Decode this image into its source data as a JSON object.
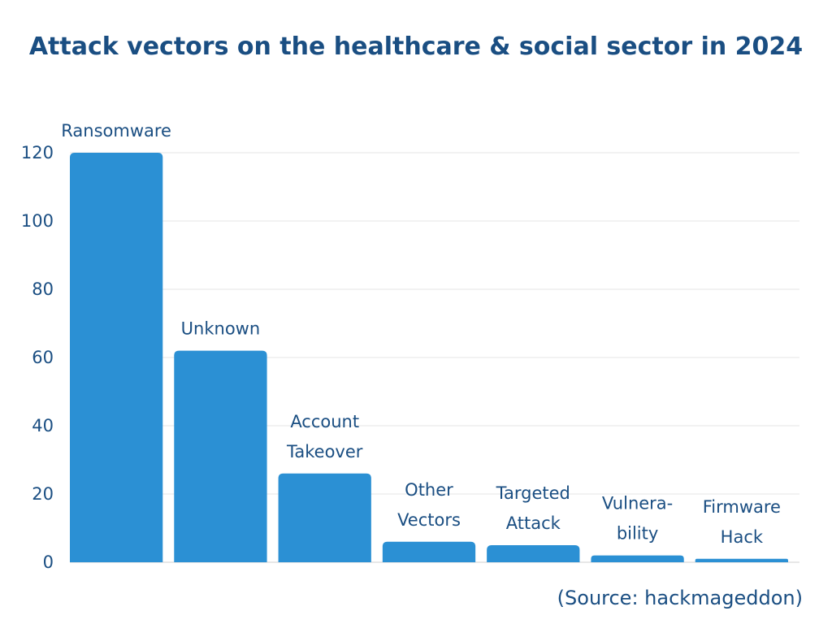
{
  "colors": {
    "bar": "#2b90d4",
    "text": "#1a4e82",
    "grid": "#e6e6e6",
    "axis": "#cfcfcf"
  },
  "source": "(Source: hackmageddon)",
  "chart_data": {
    "type": "bar",
    "title": "Attack vectors on the healthcare & social sector in 2024",
    "xlabel": "",
    "ylabel": "",
    "ylim": [
      0,
      120
    ],
    "yticks": [
      0,
      20,
      40,
      60,
      80,
      100,
      120
    ],
    "grid": true,
    "categories": [
      "Ransomware",
      "Unknown",
      "Account Takeover",
      "Other Vectors",
      "Targeted Attack",
      "Vulnera-bility",
      "Firmware Hack"
    ],
    "category_label_lines": [
      [
        "Ransomware"
      ],
      [
        "Unknown"
      ],
      [
        "Account",
        "Takeover"
      ],
      [
        "Other",
        "Vectors"
      ],
      [
        "Targeted",
        "Attack"
      ],
      [
        "Vulnera-",
        "bility"
      ],
      [
        "Firmware",
        "Hack"
      ]
    ],
    "values": [
      120,
      62,
      26,
      6,
      5,
      2,
      1
    ]
  }
}
